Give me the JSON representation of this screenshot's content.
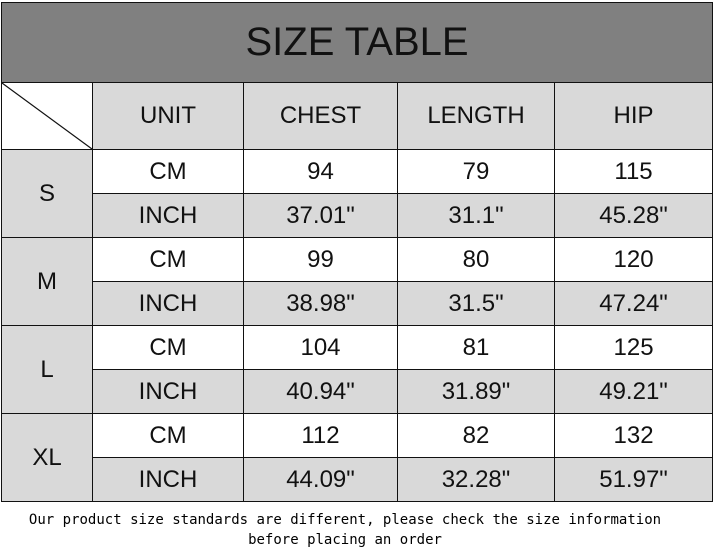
{
  "title": "SIZE TABLE",
  "headers": [
    "UNIT",
    "CHEST",
    "LENGTH",
    "HIP"
  ],
  "sizes": [
    {
      "size": "S",
      "cm": {
        "unit": "CM",
        "chest": "94",
        "length": "79",
        "hip": "115"
      },
      "inch": {
        "unit": "INCH",
        "chest": "37.01\"",
        "length": "31.1\"",
        "hip": "45.28\""
      }
    },
    {
      "size": "M",
      "cm": {
        "unit": "CM",
        "chest": "99",
        "length": "80",
        "hip": "120"
      },
      "inch": {
        "unit": "INCH",
        "chest": "38.98\"",
        "length": "31.5\"",
        "hip": "47.24\""
      }
    },
    {
      "size": "L",
      "cm": {
        "unit": "CM",
        "chest": "104",
        "length": "81",
        "hip": "125"
      },
      "inch": {
        "unit": "INCH",
        "chest": "40.94\"",
        "length": "31.89\"",
        "hip": "49.21\""
      }
    },
    {
      "size": "XL",
      "cm": {
        "unit": "CM",
        "chest": "112",
        "length": "82",
        "hip": "132"
      },
      "inch": {
        "unit": "INCH",
        "chest": "44.09\"",
        "length": "32.28\"",
        "hip": "51.97\""
      }
    }
  ],
  "note": "Our product size standards are different, please check the size information before placing an order",
  "colors": {
    "title_bg": "#808080",
    "gray_cell": "#d9d9d9",
    "white_cell": "#ffffff"
  }
}
